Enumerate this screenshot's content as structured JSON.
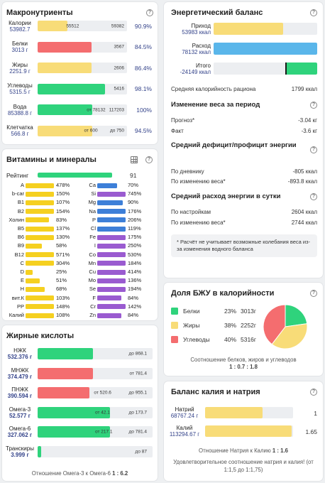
{
  "macro": {
    "title": "Макронутриенты",
    "rows": [
      {
        "label": "Калории",
        "value": "53982.7",
        "fill": 0.33,
        "color": "yellow",
        "inbar_a": "55512",
        "inbar_a_pos": 0.32,
        "inbar_b": "59382",
        "pct": "90.9%"
      },
      {
        "label": "Белки",
        "value": "3013 г",
        "fill": 0.6,
        "color": "red",
        "inbar_a": "",
        "inbar_a_pos": 0,
        "inbar_b": "3567",
        "pct": "84.5%"
      },
      {
        "label": "Жиры",
        "value": "2251.9 г",
        "fill": 0.6,
        "color": "yellow",
        "inbar_a": "",
        "inbar_a_pos": 0,
        "inbar_b": "2606",
        "pct": "86.4%"
      },
      {
        "label": "Углеводы",
        "value": "5315.5 г",
        "fill": 0.75,
        "color": "green",
        "inbar_a": "",
        "inbar_a_pos": 0,
        "inbar_b": "5416",
        "pct": "98.1%"
      },
      {
        "label": "Вода",
        "value": "85388.8 г",
        "fill": 0.61,
        "color": "green",
        "inbar_a": "от 78132",
        "inbar_a_pos": 0.55,
        "inbar_b": "117203",
        "pct": "100%"
      },
      {
        "label": "Клетчатка",
        "value": "566.8 г",
        "fill": 0.61,
        "color": "yellow",
        "inbar_a": "от 600",
        "inbar_a_pos": 0.52,
        "inbar_b": "до 750",
        "pct": "94.5%"
      }
    ]
  },
  "vitamins": {
    "title": "Витамины и минералы",
    "rating_label": "Рейтинг",
    "rating_value": "91",
    "rating_fill": 0.91,
    "left": [
      {
        "n": "A",
        "v": "478%",
        "f": 1.0
      },
      {
        "n": "b-car",
        "v": "150%",
        "f": 1.0
      },
      {
        "n": "B1",
        "v": "107%",
        "f": 1.0
      },
      {
        "n": "B2",
        "v": "154%",
        "f": 1.0
      },
      {
        "n": "Холин",
        "v": "83%",
        "f": 0.83
      },
      {
        "n": "B5",
        "v": "137%",
        "f": 1.0
      },
      {
        "n": "B6",
        "v": "130%",
        "f": 1.0
      },
      {
        "n": "B9",
        "v": "58%",
        "f": 0.58
      },
      {
        "n": "B12",
        "v": "571%",
        "f": 1.0
      },
      {
        "n": "C",
        "v": "304%",
        "f": 1.0
      },
      {
        "n": "D",
        "v": "25%",
        "f": 0.25
      },
      {
        "n": "E",
        "v": "51%",
        "f": 0.51
      },
      {
        "n": "H",
        "v": "68%",
        "f": 0.68
      },
      {
        "n": "вит.К",
        "v": "103%",
        "f": 1.0
      },
      {
        "n": "PP",
        "v": "148%",
        "f": 1.0
      },
      {
        "n": "Калий",
        "v": "108%",
        "f": 1.0
      }
    ],
    "right": [
      {
        "n": "Ca",
        "v": "70%",
        "f": 0.7,
        "c": "blue"
      },
      {
        "n": "Si",
        "v": "745%",
        "f": 1.0,
        "c": "purple"
      },
      {
        "n": "Mg",
        "v": "90%",
        "f": 0.9,
        "c": "blue"
      },
      {
        "n": "Na",
        "v": "176%",
        "f": 1.0,
        "c": "blue"
      },
      {
        "n": "P",
        "v": "206%",
        "f": 1.0,
        "c": "blue"
      },
      {
        "n": "Cl",
        "v": "119%",
        "f": 1.0,
        "c": "blue"
      },
      {
        "n": "Fe",
        "v": "175%",
        "f": 1.0,
        "c": "purple"
      },
      {
        "n": "I",
        "v": "250%",
        "f": 1.0,
        "c": "purple"
      },
      {
        "n": "Co",
        "v": "530%",
        "f": 1.0,
        "c": "purple"
      },
      {
        "n": "Mn",
        "v": "184%",
        "f": 1.0,
        "c": "purple"
      },
      {
        "n": "Cu",
        "v": "414%",
        "f": 1.0,
        "c": "purple"
      },
      {
        "n": "Mo",
        "v": "136%",
        "f": 1.0,
        "c": "purple"
      },
      {
        "n": "Se",
        "v": "194%",
        "f": 1.0,
        "c": "purple"
      },
      {
        "n": "F",
        "v": "84%",
        "f": 0.84,
        "c": "purple"
      },
      {
        "n": "Cr",
        "v": "142%",
        "f": 1.0,
        "c": "purple"
      },
      {
        "n": "Zn",
        "v": "84%",
        "f": 0.84,
        "c": "purple"
      }
    ]
  },
  "fatty": {
    "title": "Жирные кислоты",
    "rows": [
      {
        "label": "НЖК",
        "value": "532.376 г",
        "fill": 0.48,
        "color": "green",
        "inbar_a": "",
        "inbar_a_pos": 0,
        "inbar_b": "до 868.1"
      },
      {
        "label": "МНЖК",
        "value": "374.479 г",
        "fill": 0.48,
        "color": "red",
        "inbar_a": "",
        "inbar_a_pos": 0,
        "inbar_b": "от 781.4"
      },
      {
        "label": "ПНЖК",
        "value": "390.594 г",
        "fill": 0.45,
        "color": "red",
        "inbar_a": "от 520.6",
        "inbar_a_pos": 0.49,
        "inbar_b": "до 955.1"
      },
      {
        "label": "Омега-3",
        "value": "52.577 г",
        "fill": 0.63,
        "color": "green",
        "inbar_a": "от 42.1",
        "inbar_a_pos": 0.5,
        "inbar_b": "до 173.7"
      },
      {
        "label": "Омега-6",
        "value": "327.062 г",
        "fill": 0.63,
        "color": "green",
        "inbar_a": "от 217.1",
        "inbar_a_pos": 0.5,
        "inbar_b": "до 781.4"
      },
      {
        "label": "Транскиры",
        "value": "3.999 г",
        "fill": 0.03,
        "color": "green",
        "inbar_a": "",
        "inbar_a_pos": 0,
        "inbar_b": "до 87"
      }
    ],
    "ratio_label": "Отношение Омега-3 к Омега-6",
    "ratio_value": "1 : 6.2"
  },
  "energy": {
    "title": "Энергетический баланс",
    "rows": [
      {
        "label": "Приход",
        "value": "53983 ккал",
        "fill": 0.67,
        "color": "yellow"
      },
      {
        "label": "Расход",
        "value": "78132 ккал",
        "fill": 1.0,
        "color": "blue"
      },
      {
        "label": "Итого",
        "value": "-24149 ккал",
        "fill": 0.31,
        "color": "green"
      }
    ],
    "avg_label": "Средняя калорийность рациона",
    "avg_value": "1799 ккал",
    "weight_title": "Изменение веса за период",
    "forecast_label": "Прогноз*",
    "forecast_value": "-3.04 кг",
    "fact_label": "Факт",
    "fact_value": "-3.6 кг",
    "deficit_title": "Средний дефицит/профицит энергии",
    "diary_label": "По дневнику",
    "diary_value": "-805 ккал",
    "weightchg_label": "По изменению веса*",
    "weightchg_value": "-893.8 ккал",
    "expense_title": "Средний расход энергии в сутки",
    "settings_label": "По настройкам",
    "settings_value": "2604 ккал",
    "weightchg2_label": "По изменению веса*",
    "weightchg2_value": "2744 ккал",
    "note": "* Расчёт не учитывает возможные колебания веса из-за изменения водного баланса"
  },
  "bju": {
    "title": "Доля БЖУ в калорийности",
    "items": [
      {
        "name": "Белки",
        "pct": "23%",
        "grams": "3013г",
        "color": "#2fd37c",
        "value": 23
      },
      {
        "name": "Жиры",
        "pct": "38%",
        "grams": "2252г",
        "color": "#f8dc78",
        "value": 38
      },
      {
        "name": "Углеводы",
        "pct": "40%",
        "grams": "5316г",
        "color": "#f46d6f",
        "value": 40
      }
    ],
    "ratio_label": "Соотношение белков, жиров и углеводов",
    "ratio_value": "1 : 0.7 : 1.8"
  },
  "kna": {
    "title": "Баланс калия и натрия",
    "rows": [
      {
        "label": "Натрий",
        "value": "68767.24 г",
        "fill": 0.65,
        "num": "1"
      },
      {
        "label": "Калий",
        "value": "113294.67 г",
        "fill": 0.98,
        "num": "1.65"
      }
    ],
    "ratio_label": "Отношение Натрия к Калию",
    "ratio_value": "1 : 1.6",
    "note": "Удовлетворительное соотношение натрия и калия! (от 1:1,5 до 1:1,75)"
  },
  "colors": {
    "yellow": "#f8dc78",
    "red": "#f46d6f",
    "green": "#2fd37c",
    "blue": "#5ab6ea",
    "purple": "#9a5bd0",
    "vblue": "#3d7fd8"
  }
}
